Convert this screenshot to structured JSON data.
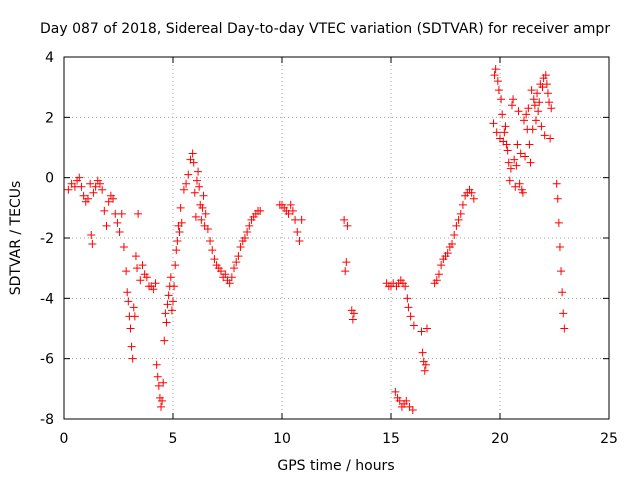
{
  "chart_data": {
    "type": "scatter",
    "title": "Day 087 of 2018, Sidereal Day-to-day VTEC variation (SDTVAR) for receiver ampr",
    "xlabel": "GPS time / hours",
    "ylabel": "SDTVAR / TECUs",
    "xlim": [
      0,
      25
    ],
    "ylim": [
      -8,
      4
    ],
    "xticks": [
      0,
      5,
      10,
      15,
      20,
      25
    ],
    "yticks": [
      -8,
      -6,
      -4,
      -2,
      0,
      2,
      4
    ],
    "grid": true,
    "marker": "+",
    "color": "#ff0000",
    "series": [
      {
        "name": "SDTVAR",
        "points": [
          [
            0.2,
            -0.4
          ],
          [
            0.35,
            -0.2
          ],
          [
            0.5,
            -0.3
          ],
          [
            0.6,
            -0.1
          ],
          [
            0.7,
            0.0
          ],
          [
            0.8,
            -0.3
          ],
          [
            0.9,
            -0.6
          ],
          [
            1.0,
            -0.8
          ],
          [
            1.1,
            -0.7
          ],
          [
            1.2,
            -0.2
          ],
          [
            1.25,
            -1.9
          ],
          [
            1.3,
            -2.2
          ],
          [
            1.35,
            -0.5
          ],
          [
            1.45,
            -0.3
          ],
          [
            1.55,
            -0.1
          ],
          [
            1.65,
            -0.2
          ],
          [
            1.75,
            -0.4
          ],
          [
            1.85,
            -1.1
          ],
          [
            1.95,
            -1.6
          ],
          [
            2.05,
            -0.8
          ],
          [
            2.15,
            -0.6
          ],
          [
            2.25,
            -0.7
          ],
          [
            2.35,
            -1.2
          ],
          [
            2.45,
            -1.5
          ],
          [
            2.55,
            -1.8
          ],
          [
            2.65,
            -1.2
          ],
          [
            2.75,
            -2.3
          ],
          [
            2.85,
            -3.1
          ],
          [
            2.9,
            -3.8
          ],
          [
            2.95,
            -4.1
          ],
          [
            3.0,
            -4.6
          ],
          [
            3.05,
            -5.0
          ],
          [
            3.1,
            -5.6
          ],
          [
            3.15,
            -6.0
          ],
          [
            3.2,
            -4.3
          ],
          [
            3.25,
            -4.6
          ],
          [
            3.3,
            -2.6
          ],
          [
            3.35,
            -3.0
          ],
          [
            3.4,
            -1.2
          ],
          [
            3.5,
            -3.4
          ],
          [
            3.6,
            -2.9
          ],
          [
            3.7,
            -3.2
          ],
          [
            3.8,
            -3.3
          ],
          [
            3.9,
            -3.6
          ],
          [
            4.0,
            -3.6
          ],
          [
            4.1,
            -3.7
          ],
          [
            4.2,
            -3.5
          ],
          [
            4.25,
            -6.2
          ],
          [
            4.3,
            -6.6
          ],
          [
            4.35,
            -6.9
          ],
          [
            4.4,
            -7.3
          ],
          [
            4.45,
            -7.6
          ],
          [
            4.5,
            -7.4
          ],
          [
            4.55,
            -6.8
          ],
          [
            4.6,
            -5.4
          ],
          [
            4.65,
            -4.5
          ],
          [
            4.7,
            -4.8
          ],
          [
            4.75,
            -4.2
          ],
          [
            4.8,
            -3.9
          ],
          [
            4.85,
            -3.6
          ],
          [
            4.9,
            -3.3
          ],
          [
            4.95,
            -4.4
          ],
          [
            5.0,
            -4.1
          ],
          [
            5.05,
            -3.6
          ],
          [
            5.1,
            -2.9
          ],
          [
            5.15,
            -2.4
          ],
          [
            5.2,
            -2.1
          ],
          [
            5.25,
            -1.6
          ],
          [
            5.3,
            -1.8
          ],
          [
            5.35,
            -1.0
          ],
          [
            5.4,
            -1.5
          ],
          [
            5.5,
            -0.4
          ],
          [
            5.6,
            -0.2
          ],
          [
            5.7,
            0.1
          ],
          [
            5.8,
            0.6
          ],
          [
            5.9,
            0.8
          ],
          [
            5.95,
            0.5
          ],
          [
            6.0,
            -0.5
          ],
          [
            6.05,
            -1.3
          ],
          [
            6.1,
            -0.1
          ],
          [
            6.15,
            0.2
          ],
          [
            6.2,
            -0.3
          ],
          [
            6.25,
            -0.9
          ],
          [
            6.3,
            -1.4
          ],
          [
            6.35,
            -1.0
          ],
          [
            6.4,
            -0.6
          ],
          [
            6.45,
            -1.6
          ],
          [
            6.5,
            -1.2
          ],
          [
            6.6,
            -1.7
          ],
          [
            6.7,
            -2.1
          ],
          [
            6.8,
            -2.4
          ],
          [
            6.9,
            -2.7
          ],
          [
            7.0,
            -2.9
          ],
          [
            7.1,
            -3.0
          ],
          [
            7.2,
            -3.1
          ],
          [
            7.3,
            -3.3
          ],
          [
            7.4,
            -3.2
          ],
          [
            7.5,
            -3.4
          ],
          [
            7.6,
            -3.5
          ],
          [
            7.7,
            -3.3
          ],
          [
            7.8,
            -3.0
          ],
          [
            7.9,
            -2.8
          ],
          [
            8.0,
            -2.6
          ],
          [
            8.1,
            -2.3
          ],
          [
            8.2,
            -2.1
          ],
          [
            8.3,
            -2.0
          ],
          [
            8.4,
            -1.8
          ],
          [
            8.5,
            -1.6
          ],
          [
            8.6,
            -1.4
          ],
          [
            8.7,
            -1.3
          ],
          [
            8.8,
            -1.2
          ],
          [
            8.9,
            -1.1
          ],
          [
            9.0,
            -1.1
          ],
          [
            9.9,
            -0.9
          ],
          [
            10.0,
            -0.9
          ],
          [
            10.1,
            -1.0
          ],
          [
            10.2,
            -1.1
          ],
          [
            10.3,
            -1.2
          ],
          [
            10.4,
            -0.9
          ],
          [
            10.5,
            -1.1
          ],
          [
            10.6,
            -1.4
          ],
          [
            10.7,
            -1.8
          ],
          [
            10.8,
            -2.1
          ],
          [
            10.9,
            -1.4
          ],
          [
            12.85,
            -1.4
          ],
          [
            12.9,
            -3.1
          ],
          [
            12.95,
            -2.8
          ],
          [
            13.0,
            -1.6
          ],
          [
            13.2,
            -4.4
          ],
          [
            13.25,
            -4.7
          ],
          [
            13.3,
            -4.5
          ],
          [
            14.8,
            -3.5
          ],
          [
            14.9,
            -3.6
          ],
          [
            15.0,
            -3.6
          ],
          [
            15.1,
            -3.5
          ],
          [
            15.2,
            -7.1
          ],
          [
            15.25,
            -3.6
          ],
          [
            15.3,
            -7.3
          ],
          [
            15.35,
            -3.5
          ],
          [
            15.4,
            -7.4
          ],
          [
            15.45,
            -3.4
          ],
          [
            15.5,
            -7.6
          ],
          [
            15.55,
            -3.5
          ],
          [
            15.6,
            -7.5
          ],
          [
            15.65,
            -3.6
          ],
          [
            15.7,
            -7.4
          ],
          [
            15.75,
            -4.0
          ],
          [
            15.8,
            -4.3
          ],
          [
            15.85,
            -7.6
          ],
          [
            15.9,
            -4.6
          ],
          [
            16.0,
            -7.7
          ],
          [
            16.05,
            -4.9
          ],
          [
            16.4,
            -5.1
          ],
          [
            16.45,
            -5.8
          ],
          [
            16.5,
            -6.1
          ],
          [
            16.55,
            -6.4
          ],
          [
            16.6,
            -6.2
          ],
          [
            16.65,
            -5.0
          ],
          [
            17.0,
            -3.5
          ],
          [
            17.1,
            -3.4
          ],
          [
            17.2,
            -3.2
          ],
          [
            17.3,
            -2.9
          ],
          [
            17.4,
            -2.7
          ],
          [
            17.5,
            -2.6
          ],
          [
            17.6,
            -2.5
          ],
          [
            17.7,
            -2.3
          ],
          [
            17.8,
            -2.2
          ],
          [
            17.9,
            -1.9
          ],
          [
            18.0,
            -1.6
          ],
          [
            18.1,
            -1.4
          ],
          [
            18.2,
            -1.2
          ],
          [
            18.3,
            -0.9
          ],
          [
            18.4,
            -0.6
          ],
          [
            18.5,
            -0.5
          ],
          [
            18.6,
            -0.4
          ],
          [
            18.7,
            -0.5
          ],
          [
            18.8,
            -0.7
          ],
          [
            19.7,
            1.8
          ],
          [
            19.75,
            3.4
          ],
          [
            19.8,
            3.6
          ],
          [
            19.85,
            1.5
          ],
          [
            19.9,
            3.2
          ],
          [
            19.95,
            2.9
          ],
          [
            20.0,
            1.3
          ],
          [
            20.05,
            2.6
          ],
          [
            20.1,
            2.1
          ],
          [
            20.15,
            1.2
          ],
          [
            20.2,
            1.5
          ],
          [
            20.25,
            1.7
          ],
          [
            20.3,
            1.1
          ],
          [
            20.35,
            0.9
          ],
          [
            20.4,
            0.5
          ],
          [
            20.45,
            -0.1
          ],
          [
            20.5,
            0.3
          ],
          [
            20.55,
            2.4
          ],
          [
            20.6,
            2.6
          ],
          [
            20.65,
            0.6
          ],
          [
            20.7,
            -0.3
          ],
          [
            20.75,
            0.4
          ],
          [
            20.8,
            1.1
          ],
          [
            20.85,
            2.2
          ],
          [
            20.9,
            -0.2
          ],
          [
            20.95,
            0.8
          ],
          [
            21.0,
            -0.4
          ],
          [
            21.05,
            -0.5
          ],
          [
            21.1,
            1.9
          ],
          [
            21.15,
            0.7
          ],
          [
            21.2,
            2.1
          ],
          [
            21.25,
            1.6
          ],
          [
            21.3,
            2.3
          ],
          [
            21.35,
            1.1
          ],
          [
            21.4,
            0.5
          ],
          [
            21.45,
            2.9
          ],
          [
            21.5,
            1.6
          ],
          [
            21.55,
            2.6
          ],
          [
            21.6,
            2.4
          ],
          [
            21.65,
            1.9
          ],
          [
            21.7,
            2.8
          ],
          [
            21.75,
            2.2
          ],
          [
            21.8,
            2.5
          ],
          [
            21.85,
            3.1
          ],
          [
            21.9,
            1.7
          ],
          [
            21.95,
            3.0
          ],
          [
            22.0,
            3.3
          ],
          [
            22.05,
            1.4
          ],
          [
            22.1,
            3.4
          ],
          [
            22.15,
            3.1
          ],
          [
            22.2,
            2.8
          ],
          [
            22.25,
            2.5
          ],
          [
            22.3,
            1.3
          ],
          [
            22.35,
            2.3
          ],
          [
            22.6,
            -0.2
          ],
          [
            22.65,
            -0.7
          ],
          [
            22.7,
            -1.5
          ],
          [
            22.75,
            -2.3
          ],
          [
            22.8,
            -3.1
          ],
          [
            22.85,
            -3.8
          ],
          [
            22.9,
            -4.5
          ],
          [
            22.95,
            -5.0
          ]
        ]
      }
    ]
  }
}
